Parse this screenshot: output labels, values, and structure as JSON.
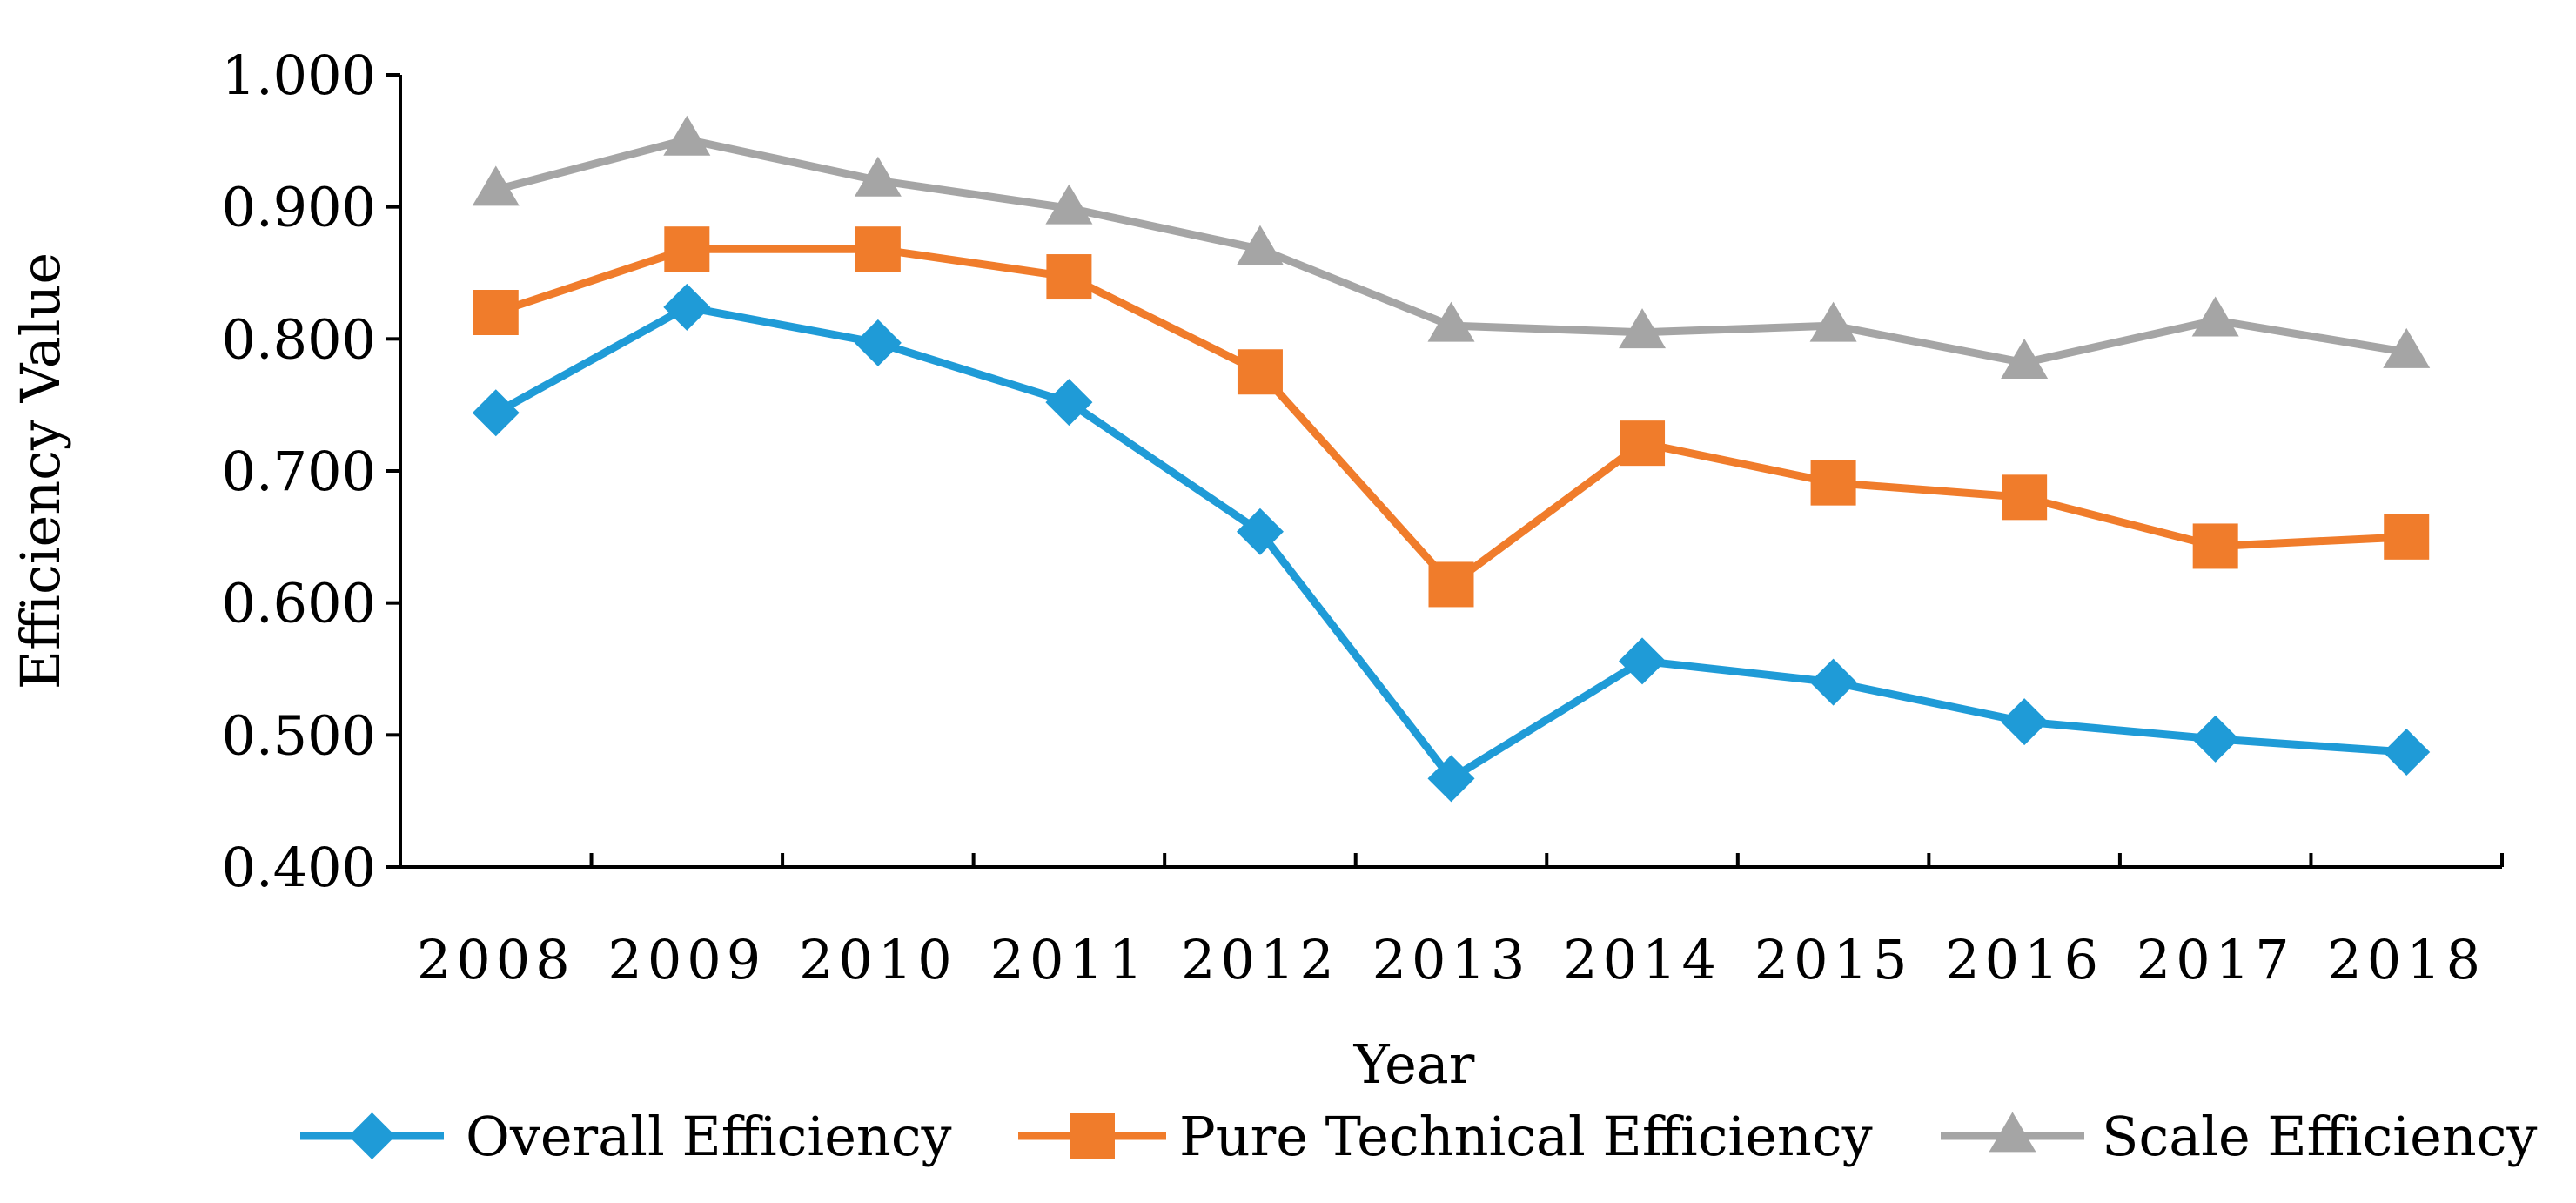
{
  "chart_data": {
    "type": "line",
    "title": "",
    "xlabel": "Year",
    "ylabel": "Efficiency Value",
    "categories": [
      "2008",
      "2009",
      "2010",
      "2011",
      "2012",
      "2013",
      "2014",
      "2015",
      "2016",
      "2017",
      "2018"
    ],
    "ylim": [
      0.4,
      1.0
    ],
    "yticks": [
      "0.400",
      "0.500",
      "0.600",
      "0.700",
      "0.800",
      "0.900",
      "1.000"
    ],
    "ytick_values": [
      0.4,
      0.5,
      0.6,
      0.7,
      0.8,
      0.9,
      1.0
    ],
    "grid": false,
    "legend_position": "bottom",
    "series": [
      {
        "name": "Overall Efficiency",
        "color": "#1F9BD7",
        "marker": "diamond",
        "values": [
          0.744,
          0.824,
          0.797,
          0.752,
          0.654,
          0.467,
          0.556,
          0.54,
          0.51,
          0.497,
          0.487
        ]
      },
      {
        "name": "Pure Technical Efficiency",
        "color": "#F07C2B",
        "marker": "square",
        "values": [
          0.82,
          0.868,
          0.868,
          0.847,
          0.775,
          0.614,
          0.721,
          0.691,
          0.68,
          0.643,
          0.65
        ]
      },
      {
        "name": "Scale Efficiency",
        "color": "#A5A5A5",
        "marker": "triangle",
        "values": [
          0.913,
          0.951,
          0.92,
          0.899,
          0.868,
          0.81,
          0.805,
          0.81,
          0.782,
          0.814,
          0.79
        ]
      }
    ]
  }
}
